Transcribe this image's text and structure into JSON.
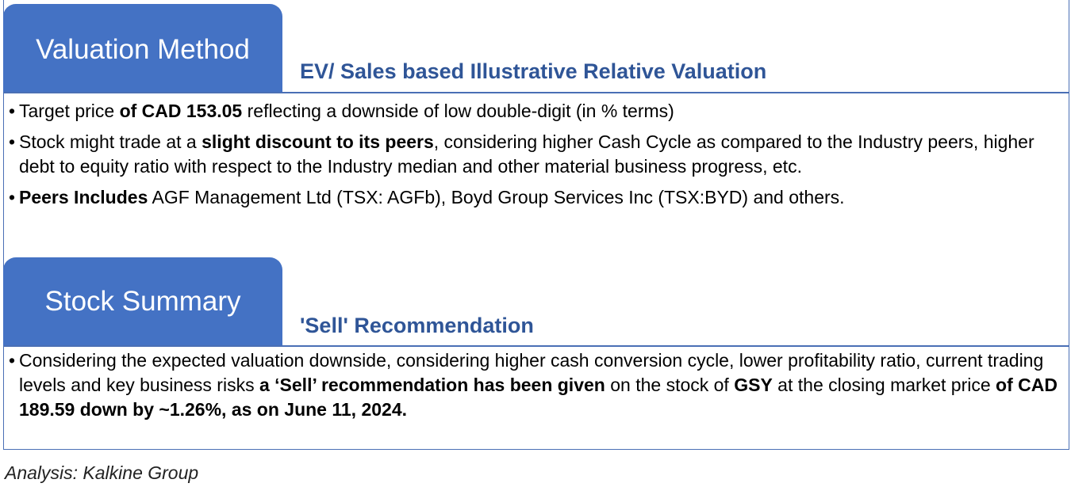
{
  "valuation": {
    "tab_title": "Valuation Method",
    "subheading": "EV/ Sales based Illustrative Relative Valuation",
    "bullets": [
      {
        "a": "Target price ",
        "b": "of CAD 153.05",
        "c": " reflecting a downside of low double-digit (in % terms)"
      },
      {
        "a": "Stock might trade at a ",
        "b": "slight discount to its peers",
        "c": ", considering  higher Cash Cycle as compared to the Industry peers, higher debt to equity ratio with respect to the Industry median and other material business progress, etc."
      },
      {
        "b": "Peers Includes",
        "c": "  AGF Management Ltd (TSX: AGFb), Boyd Group Services Inc (TSX:BYD) and others."
      }
    ]
  },
  "summary": {
    "tab_title": "Stock Summary",
    "subheading": "'Sell' Recommendation",
    "bullet": {
      "a": "Considering the expected valuation downside, considering  higher cash conversion cycle, lower profitability ratio, current trading levels and key business risks ",
      "b": "a ‘Sell’ recommendation has been given",
      "c": " on the stock of  ",
      "d": "GSY",
      "e": " at the closing market price ",
      "f": "of CAD 189.59 down by ~1.26%, as on June 11, 2024."
    }
  },
  "footnote": "Analysis: Kalkine Group"
}
